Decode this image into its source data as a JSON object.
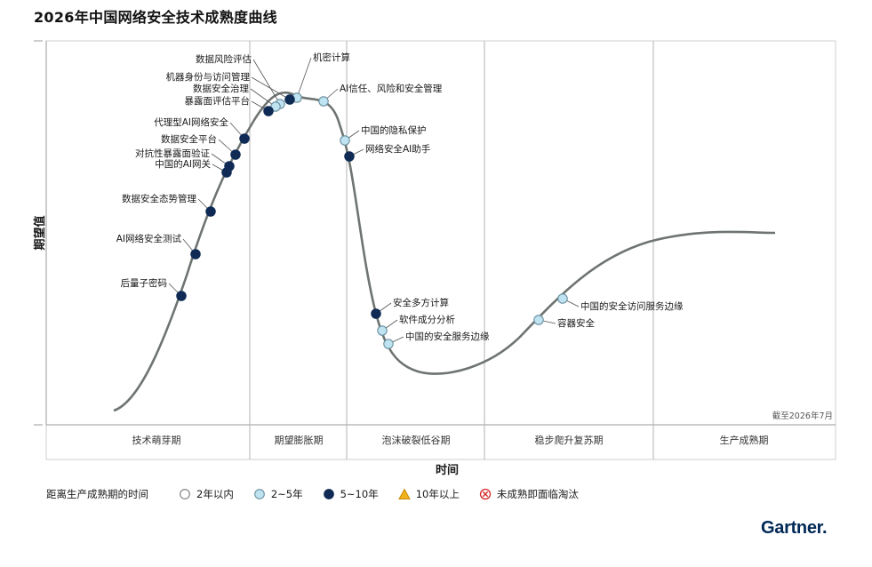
{
  "title": "2026年中国网络安全技术成熟度曲线",
  "chart_data": {
    "type": "scatter",
    "title": "2026年中国网络安全技术成熟度曲线",
    "xlabel": "时间",
    "ylabel": "期望值",
    "as_of": "截至2026年7月",
    "phases": [
      "技术萌芽期",
      "期望膨胀期",
      "泡沫破裂低谷期",
      "稳步爬升复苏期",
      "生产成熟期"
    ],
    "legend_title": "距离生产成熟期的时间",
    "legend": [
      {
        "key": "lt2",
        "label": "2年以内",
        "fill": "#ffffff",
        "stroke": "#7a7a7a",
        "shape": "circle"
      },
      {
        "key": "2to5",
        "label": "2~5年",
        "fill": "#bfe3f0",
        "stroke": "#6a8fa0",
        "shape": "circle"
      },
      {
        "key": "5to10",
        "label": "5~10年",
        "fill": "#0f2a55",
        "stroke": "#0f2a55",
        "shape": "circle"
      },
      {
        "key": "gt10",
        "label": "10年以上",
        "fill": "#f2b21c",
        "stroke": "#c48a00",
        "shape": "triangle"
      },
      {
        "key": "obsolete",
        "label": "未成熟即面临淘汰",
        "fill": "#ffffff",
        "stroke": "#d62728",
        "shape": "cross"
      }
    ],
    "points": [
      {
        "name": "数据风险评估",
        "category": "2to5"
      },
      {
        "name": "机密计算",
        "category": "2to5"
      },
      {
        "name": "机器身份与访问管理",
        "category": "5to10"
      },
      {
        "name": "数据安全治理",
        "category": "2to5"
      },
      {
        "name": "AI信任、风险和安全管理",
        "category": "2to5"
      },
      {
        "name": "暴露面评估平台",
        "category": "5to10"
      },
      {
        "name": "代理型AI网络安全",
        "category": "5to10"
      },
      {
        "name": "中国的隐私保护",
        "category": "2to5"
      },
      {
        "name": "数据安全平台",
        "category": "5to10"
      },
      {
        "name": "网络安全AI助手",
        "category": "5to10"
      },
      {
        "name": "对抗性暴露面验证",
        "category": "5to10"
      },
      {
        "name": "中国的AI网关",
        "category": "5to10"
      },
      {
        "name": "数据安全态势管理",
        "category": "5to10"
      },
      {
        "name": "AI网络安全测试",
        "category": "5to10"
      },
      {
        "name": "后量子密码",
        "category": "5to10"
      },
      {
        "name": "安全多方计算",
        "category": "5to10"
      },
      {
        "name": "软件成分分析",
        "category": "2to5"
      },
      {
        "name": "中国的安全服务边缘",
        "category": "2to5"
      },
      {
        "name": "中国的安全访问服务边缘",
        "category": "2to5"
      },
      {
        "name": "容器安全",
        "category": "2to5"
      }
    ]
  },
  "brand": "Gartner"
}
